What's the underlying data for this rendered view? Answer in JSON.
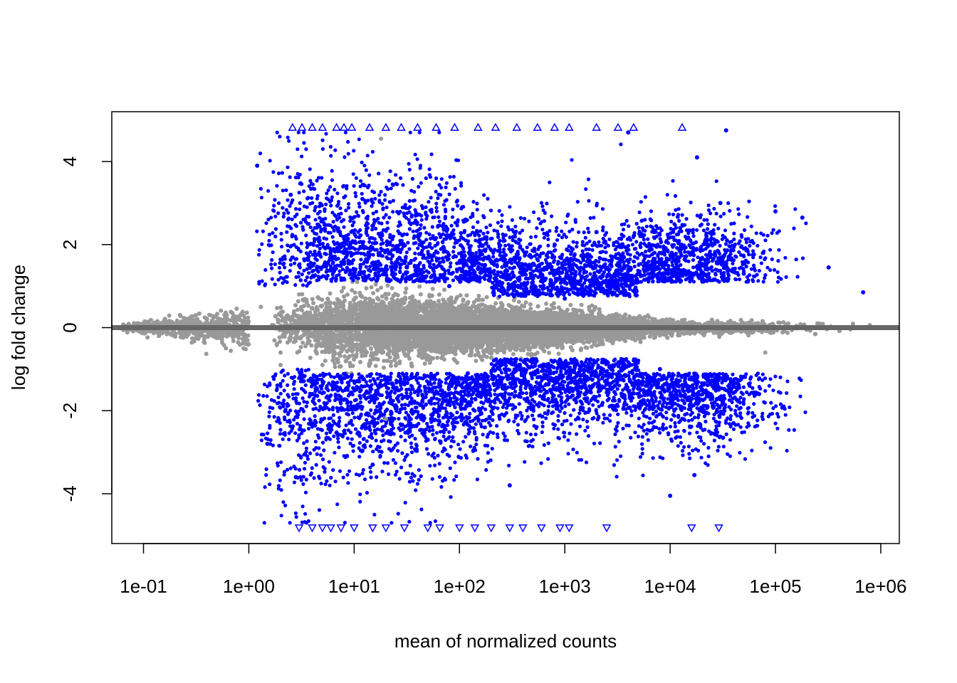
{
  "chart_data": {
    "type": "scatter",
    "title": "",
    "xlabel": "mean of normalized counts",
    "ylabel": "log fold change",
    "x_scale": "log10",
    "xlim": [
      0.05,
      1500000
    ],
    "ylim": [
      -5.2,
      5.2
    ],
    "x_ticks": [
      {
        "value": 0.1,
        "label": "1e-01"
      },
      {
        "value": 1,
        "label": "1e+00"
      },
      {
        "value": 10,
        "label": "1e+01"
      },
      {
        "value": 100,
        "label": "1e+02"
      },
      {
        "value": 1000,
        "label": "1e+03"
      },
      {
        "value": 10000,
        "label": "1e+04"
      },
      {
        "value": 100000,
        "label": "1e+05"
      },
      {
        "value": 1000000,
        "label": "1e+06"
      }
    ],
    "y_ticks": [
      {
        "value": 4,
        "label": "4"
      },
      {
        "value": 2,
        "label": "2"
      },
      {
        "value": 0,
        "label": "0"
      },
      {
        "value": -2,
        "label": "-2"
      },
      {
        "value": -4,
        "label": "-4"
      }
    ],
    "reference_line": {
      "y": 0,
      "color": "#666666"
    },
    "colors": {
      "significant": "#0000ff",
      "not_significant": "#999999"
    },
    "legend": "none",
    "grid": false,
    "series": [
      {
        "points": [
          {
            "x": 0.07,
            "y": 0.0
          },
          {
            "x": 0.1,
            "y": 0.05
          },
          {
            "x": 0.15,
            "y": -0.05
          },
          {
            "x": 0.2,
            "y": 0.1
          },
          {
            "x": 0.3,
            "y": -0.1
          },
          {
            "x": 0.4,
            "y": 0.2
          },
          {
            "x": 0.5,
            "y": -0.25
          },
          {
            "x": 0.7,
            "y": 0.35
          },
          {
            "x": 1.0,
            "y": -0.4
          },
          {
            "x": 1.3,
            "y": 0.5
          },
          {
            "x": 2.0,
            "y": -0.6
          },
          {
            "x": 3.0,
            "y": 0.8
          },
          {
            "x": 5.0,
            "y": -0.9
          },
          {
            "x": 8.0,
            "y": 0.75
          },
          {
            "x": 15.0,
            "y": -0.7
          },
          {
            "x": 30.0,
            "y": 0.6
          },
          {
            "x": 60.0,
            "y": -0.5
          },
          {
            "x": 150.0,
            "y": 0.45
          },
          {
            "x": 400.0,
            "y": -0.35
          },
          {
            "x": 1000.0,
            "y": 0.3
          },
          {
            "x": 3000.0,
            "y": -0.25
          },
          {
            "x": 10000.0,
            "y": 0.2
          },
          {
            "x": 30000.0,
            "y": -0.15
          },
          {
            "x": 80000.0,
            "y": -0.6
          },
          {
            "x": 250000.0,
            "y": 0.1
          },
          {
            "x": 18.0,
            "y": 4.55
          },
          {
            "x": 20.0,
            "y": -2.2
          },
          {
            "x": 2.0,
            "y": -0.9
          }
        ]
      },
      {
        "points": [
          {
            "x": 1.2,
            "y": 3.9
          },
          {
            "x": 1.5,
            "y": -2.8
          },
          {
            "x": 2.5,
            "y": 3.2
          },
          {
            "x": 2.8,
            "y": -3.6
          },
          {
            "x": 3.0,
            "y": 1.5
          },
          {
            "x": 4.0,
            "y": -1.6
          },
          {
            "x": 5.0,
            "y": 2.6
          },
          {
            "x": 6.0,
            "y": -2.4
          },
          {
            "x": 8.0,
            "y": 1.8
          },
          {
            "x": 10.0,
            "y": -1.9
          },
          {
            "x": 12.0,
            "y": 3.1
          },
          {
            "x": 15.0,
            "y": -3.3
          },
          {
            "x": 20.0,
            "y": 1.4
          },
          {
            "x": 30.0,
            "y": -1.3
          },
          {
            "x": 40.0,
            "y": 2.2
          },
          {
            "x": 50.0,
            "y": -2.7
          },
          {
            "x": 80.0,
            "y": 1.0
          },
          {
            "x": 120.0,
            "y": -1.1
          },
          {
            "x": 200.0,
            "y": 1.6
          },
          {
            "x": 300.0,
            "y": -3.8
          },
          {
            "x": 500.0,
            "y": 0.9
          },
          {
            "x": 800.0,
            "y": -0.8
          },
          {
            "x": 1000.0,
            "y": 0.7
          },
          {
            "x": 1500.0,
            "y": -0.9
          },
          {
            "x": 2000.0,
            "y": 2.3
          },
          {
            "x": 3000.0,
            "y": -1.4
          },
          {
            "x": 5000.0,
            "y": 1.1
          },
          {
            "x": 8000.0,
            "y": -1.0
          },
          {
            "x": 12000.0,
            "y": 1.6
          },
          {
            "x": 20000.0,
            "y": -1.5
          },
          {
            "x": 30000.0,
            "y": 3.0
          },
          {
            "x": 34000.0,
            "y": 4.75
          },
          {
            "x": 50000.0,
            "y": 1.3
          },
          {
            "x": 70000.0,
            "y": -1.6
          },
          {
            "x": 100000.0,
            "y": 2.8
          },
          {
            "x": 180000.0,
            "y": 2.65
          },
          {
            "x": 320000.0,
            "y": 1.45
          },
          {
            "x": 680000.0,
            "y": 0.85
          },
          {
            "x": 10000.0,
            "y": -4.05
          },
          {
            "x": 17000.0,
            "y": -3.55
          },
          {
            "x": 40000.0,
            "y": -2.3
          },
          {
            "x": 4000.0,
            "y": 4.7
          },
          {
            "x": 18000.0,
            "y": 4.1
          }
        ]
      },
      {
        "marker": "triangle-up",
        "points": [
          {
            "x": 2.6,
            "y": 4.82
          },
          {
            "x": 3.2,
            "y": 4.82
          },
          {
            "x": 4.0,
            "y": 4.82
          },
          {
            "x": 5.0,
            "y": 4.82
          },
          {
            "x": 6.8,
            "y": 4.82
          },
          {
            "x": 8.0,
            "y": 4.82
          },
          {
            "x": 9.5,
            "y": 4.82
          },
          {
            "x": 14.0,
            "y": 4.82
          },
          {
            "x": 20.0,
            "y": 4.82
          },
          {
            "x": 28.0,
            "y": 4.82
          },
          {
            "x": 40.0,
            "y": 4.82
          },
          {
            "x": 60.0,
            "y": 4.82
          },
          {
            "x": 90.0,
            "y": 4.82
          },
          {
            "x": 150.0,
            "y": 4.82
          },
          {
            "x": 220.0,
            "y": 4.82
          },
          {
            "x": 350.0,
            "y": 4.82
          },
          {
            "x": 550.0,
            "y": 4.82
          },
          {
            "x": 800.0,
            "y": 4.82
          },
          {
            "x": 1100.0,
            "y": 4.82
          },
          {
            "x": 2000.0,
            "y": 4.82
          },
          {
            "x": 3200.0,
            "y": 4.82
          },
          {
            "x": 4500.0,
            "y": 4.82
          },
          {
            "x": 13000.0,
            "y": 4.82
          }
        ]
      },
      {
        "marker": "triangle-down",
        "points": [
          {
            "x": 3.0,
            "y": -4.82
          },
          {
            "x": 4.0,
            "y": -4.82
          },
          {
            "x": 5.0,
            "y": -4.82
          },
          {
            "x": 6.0,
            "y": -4.82
          },
          {
            "x": 7.5,
            "y": -4.82
          },
          {
            "x": 10.0,
            "y": -4.82
          },
          {
            "x": 15.0,
            "y": -4.82
          },
          {
            "x": 20.0,
            "y": -4.82
          },
          {
            "x": 30.0,
            "y": -4.82
          },
          {
            "x": 50.0,
            "y": -4.82
          },
          {
            "x": 65.0,
            "y": -4.82
          },
          {
            "x": 100.0,
            "y": -4.82
          },
          {
            "x": 140.0,
            "y": -4.82
          },
          {
            "x": 200.0,
            "y": -4.82
          },
          {
            "x": 300.0,
            "y": -4.82
          },
          {
            "x": 400.0,
            "y": -4.82
          },
          {
            "x": 600.0,
            "y": -4.82
          },
          {
            "x": 900.0,
            "y": -4.82
          },
          {
            "x": 1100.0,
            "y": -4.82
          },
          {
            "x": 2500.0,
            "y": -4.82
          },
          {
            "x": 16000.0,
            "y": -4.82
          },
          {
            "x": 29000.0,
            "y": -4.82
          }
        ]
      }
    ]
  }
}
